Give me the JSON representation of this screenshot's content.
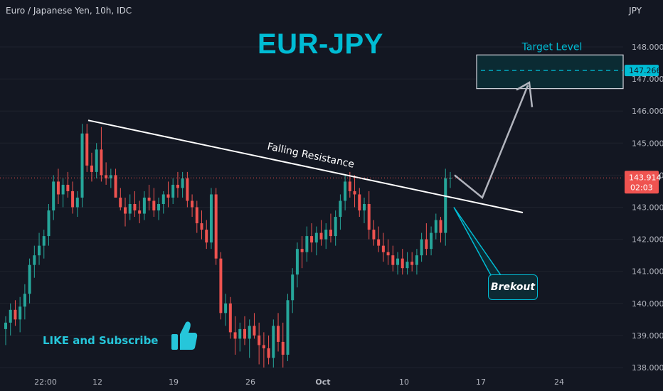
{
  "header": {
    "symbol_line": "Euro / Japanese Yen, 10h, IDC",
    "currency": "JPY"
  },
  "title": "EUR-JPY",
  "annotations": {
    "falling_resistance": "Falling Resistance",
    "target_level": "Target Level",
    "brekout": "Brekout",
    "like": "LIKE and Subscribe"
  },
  "price_tags": {
    "target": "147.266",
    "current": "143.914",
    "countdown": "02:03"
  },
  "colors": {
    "background": "#131722",
    "up": "#26a69a",
    "down": "#ef5350",
    "accent": "#00bcd4"
  },
  "icons": [
    "thumbs-up-icon"
  ],
  "chart_data": {
    "type": "candlestick",
    "ylim": [
      138.0,
      148.5
    ],
    "y_ticks": [
      "148.000",
      "147.000",
      "146.000",
      "145.000",
      "144.000",
      "143.000",
      "142.000",
      "141.000",
      "140.000",
      "139.000",
      "138.000"
    ],
    "x_ticks": [
      "22:00",
      "12",
      "19",
      "26",
      "Oct",
      "10",
      "17",
      "24"
    ],
    "ohlc": [
      [
        139.2,
        139.6,
        138.7,
        139.4
      ],
      [
        139.4,
        140.0,
        139.0,
        139.8
      ],
      [
        139.8,
        140.1,
        139.3,
        139.5
      ],
      [
        139.5,
        140.2,
        139.1,
        139.9
      ],
      [
        139.9,
        140.6,
        139.5,
        140.3
      ],
      [
        140.3,
        141.4,
        140.0,
        141.2
      ],
      [
        141.2,
        141.8,
        140.8,
        141.5
      ],
      [
        141.5,
        142.2,
        141.2,
        141.8
      ],
      [
        141.8,
        142.3,
        141.4,
        142.1
      ],
      [
        142.1,
        143.1,
        141.8,
        142.9
      ],
      [
        142.9,
        144.0,
        142.6,
        143.8
      ],
      [
        143.8,
        144.2,
        143.1,
        143.4
      ],
      [
        143.4,
        143.9,
        143.0,
        143.7
      ],
      [
        143.7,
        144.1,
        143.3,
        143.5
      ],
      [
        143.5,
        143.8,
        142.8,
        143.0
      ],
      [
        143.0,
        143.5,
        142.7,
        143.3
      ],
      [
        143.3,
        145.6,
        143.0,
        145.3
      ],
      [
        145.3,
        145.6,
        144.1,
        144.3
      ],
      [
        144.3,
        144.7,
        143.8,
        144.1
      ],
      [
        144.1,
        145.0,
        143.9,
        144.8
      ],
      [
        144.8,
        145.5,
        143.8,
        144.0
      ],
      [
        144.0,
        144.4,
        143.7,
        143.9
      ],
      [
        143.9,
        144.2,
        143.6,
        144.0
      ],
      [
        144.0,
        144.2,
        143.4,
        143.3
      ],
      [
        143.3,
        143.6,
        142.9,
        143.0
      ],
      [
        143.0,
        143.3,
        142.4,
        142.8
      ],
      [
        142.8,
        143.4,
        142.6,
        143.1
      ],
      [
        143.1,
        143.5,
        142.7,
        142.9
      ],
      [
        142.9,
        143.2,
        142.5,
        142.8
      ],
      [
        142.8,
        143.5,
        142.6,
        143.3
      ],
      [
        143.3,
        143.7,
        142.9,
        143.2
      ],
      [
        143.2,
        143.6,
        142.7,
        142.9
      ],
      [
        142.9,
        143.3,
        142.6,
        143.1
      ],
      [
        143.1,
        143.5,
        142.8,
        143.4
      ],
      [
        143.4,
        143.8,
        143.0,
        143.3
      ],
      [
        143.3,
        143.9,
        143.1,
        143.7
      ],
      [
        143.7,
        144.1,
        143.3,
        143.6
      ],
      [
        143.6,
        144.1,
        143.3,
        143.9
      ],
      [
        143.9,
        144.1,
        143.0,
        143.2
      ],
      [
        143.2,
        143.4,
        142.7,
        143.0
      ],
      [
        143.0,
        143.2,
        142.2,
        142.5
      ],
      [
        142.5,
        142.9,
        142.0,
        142.3
      ],
      [
        142.3,
        142.6,
        141.7,
        141.9
      ],
      [
        141.9,
        143.6,
        141.7,
        143.4
      ],
      [
        143.4,
        143.6,
        141.2,
        141.4
      ],
      [
        141.4,
        141.6,
        139.5,
        139.7
      ],
      [
        139.7,
        140.3,
        139.3,
        140.0
      ],
      [
        140.0,
        140.2,
        138.9,
        139.1
      ],
      [
        139.1,
        139.6,
        138.4,
        138.9
      ],
      [
        138.9,
        139.4,
        138.5,
        139.2
      ],
      [
        139.2,
        139.6,
        138.7,
        138.9
      ],
      [
        138.9,
        139.5,
        138.3,
        139.3
      ],
      [
        139.3,
        139.7,
        138.9,
        139.0
      ],
      [
        139.0,
        139.4,
        138.1,
        138.7
      ],
      [
        138.7,
        139.1,
        138.0,
        138.6
      ],
      [
        138.6,
        139.0,
        138.1,
        138.3
      ],
      [
        138.3,
        139.5,
        138.0,
        139.3
      ],
      [
        139.3,
        139.7,
        138.5,
        138.8
      ],
      [
        138.8,
        139.4,
        138.0,
        138.4
      ],
      [
        138.4,
        140.3,
        138.2,
        140.1
      ],
      [
        140.1,
        141.1,
        139.7,
        140.9
      ],
      [
        140.9,
        141.9,
        140.5,
        141.7
      ],
      [
        141.7,
        142.1,
        141.1,
        141.6
      ],
      [
        141.6,
        142.4,
        141.3,
        142.1
      ],
      [
        142.1,
        142.5,
        141.6,
        141.9
      ],
      [
        141.9,
        142.4,
        141.5,
        142.2
      ],
      [
        142.2,
        142.6,
        141.8,
        142.0
      ],
      [
        142.0,
        142.5,
        141.7,
        142.3
      ],
      [
        142.3,
        142.8,
        141.9,
        142.1
      ],
      [
        142.1,
        142.9,
        141.8,
        142.7
      ],
      [
        142.7,
        143.4,
        142.3,
        143.2
      ],
      [
        143.2,
        144.0,
        142.9,
        143.8
      ],
      [
        143.8,
        144.1,
        143.3,
        143.5
      ],
      [
        143.5,
        144.0,
        143.0,
        143.4
      ],
      [
        143.4,
        143.6,
        142.7,
        142.9
      ],
      [
        142.9,
        143.3,
        142.5,
        143.1
      ],
      [
        143.1,
        143.5,
        142.0,
        142.3
      ],
      [
        142.3,
        142.6,
        141.8,
        142.0
      ],
      [
        142.0,
        142.4,
        141.6,
        141.8
      ],
      [
        141.8,
        142.2,
        141.3,
        141.6
      ],
      [
        141.6,
        142.0,
        141.2,
        141.5
      ],
      [
        141.5,
        141.8,
        141.0,
        141.2
      ],
      [
        141.2,
        141.6,
        140.9,
        141.4
      ],
      [
        141.4,
        141.7,
        140.9,
        141.1
      ],
      [
        141.1,
        141.6,
        140.9,
        141.3
      ],
      [
        141.3,
        141.6,
        141.0,
        141.2
      ],
      [
        141.2,
        141.7,
        140.9,
        141.5
      ],
      [
        141.5,
        142.2,
        141.3,
        142.0
      ],
      [
        142.0,
        142.5,
        141.5,
        141.7
      ],
      [
        141.7,
        142.4,
        141.5,
        142.2
      ],
      [
        142.2,
        142.8,
        142.0,
        142.6
      ],
      [
        142.6,
        142.7,
        141.9,
        142.2
      ],
      [
        142.2,
        144.2,
        141.8,
        143.9
      ],
      [
        143.9,
        144.1,
        143.6,
        143.914
      ]
    ],
    "resistance_line": {
      "from": [
        "12",
        145.6
      ],
      "to": [
        "19-Oct",
        142.9
      ]
    },
    "target_zone": {
      "low": 146.7,
      "high": 147.75,
      "level": 147.266
    }
  }
}
